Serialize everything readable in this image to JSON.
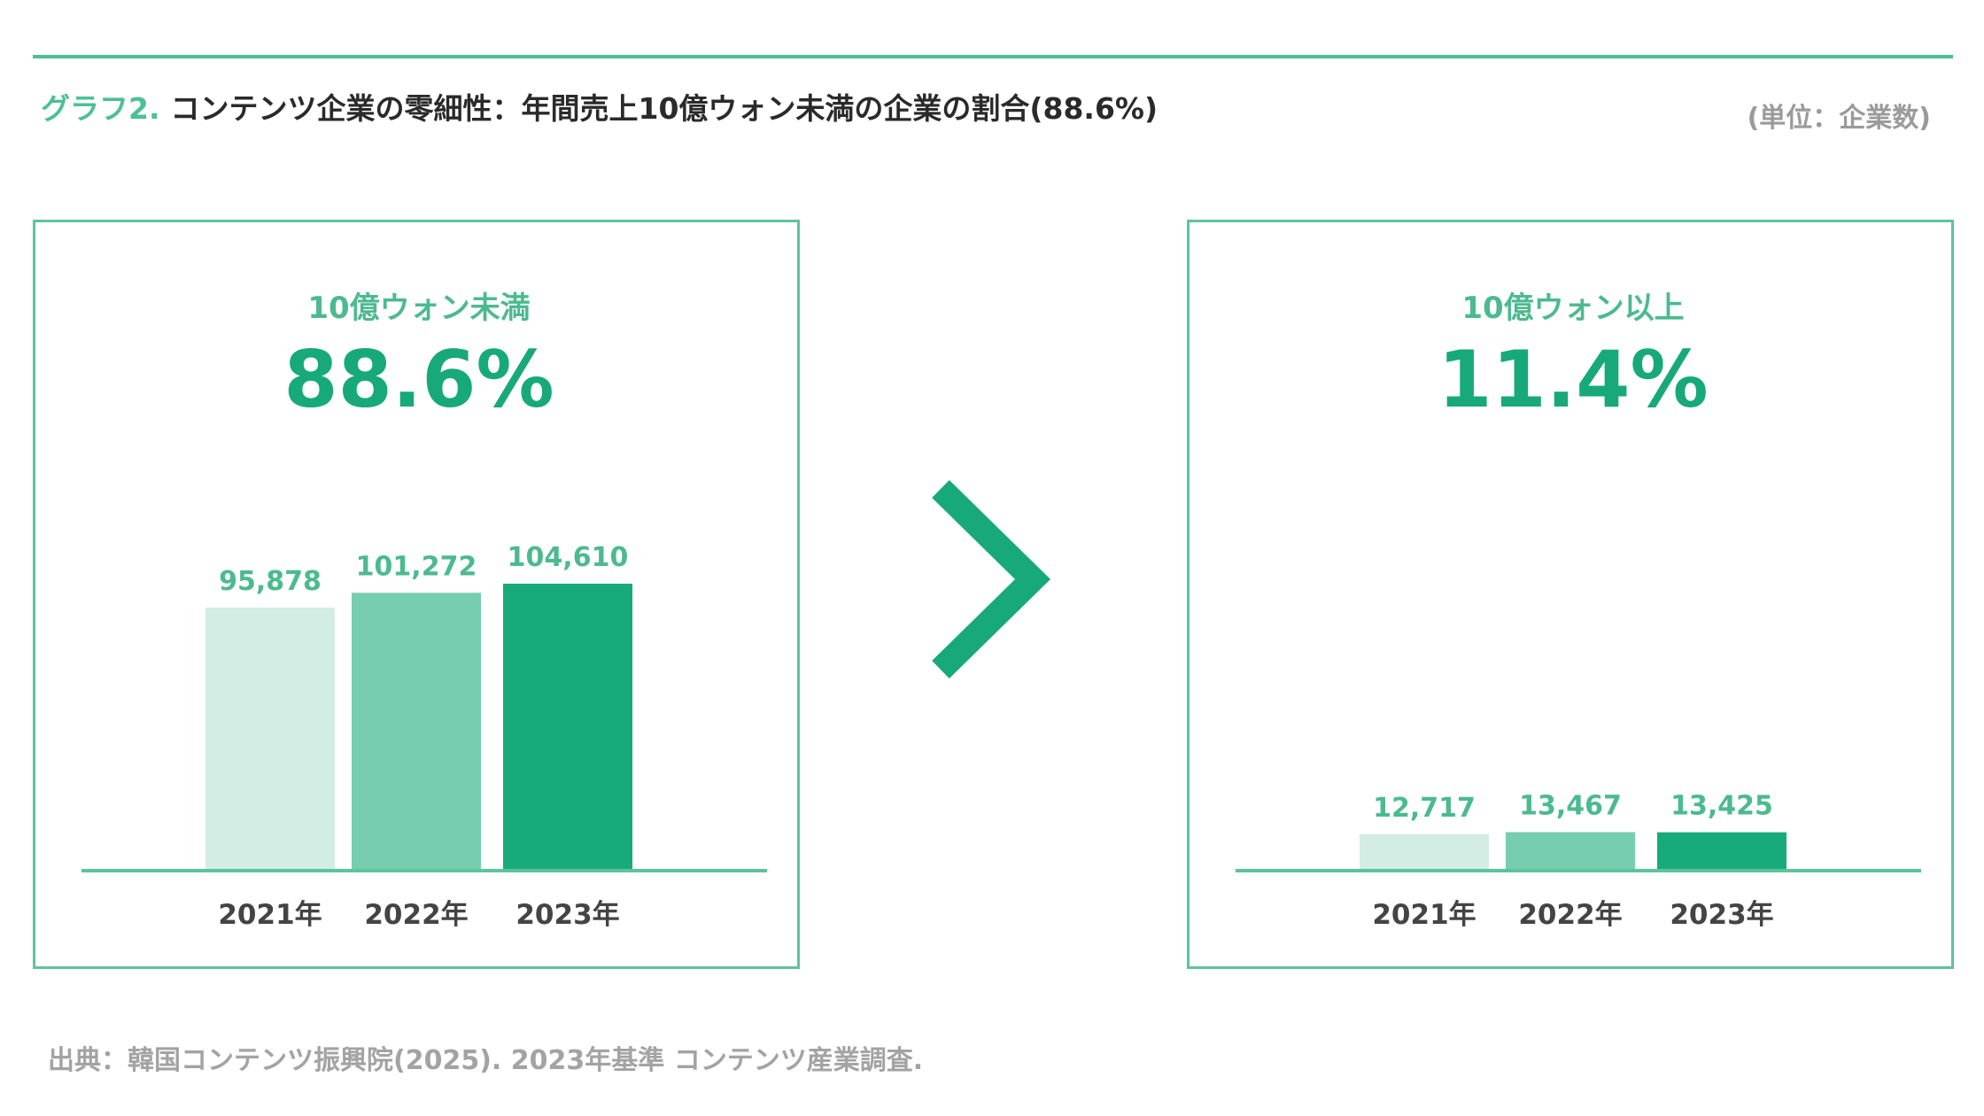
{
  "header": {
    "title_prefix": "グラフ2.",
    "title": "コンテンツ企業の零細性：年間売上10億ウォン未満の企業の割合(88.6%)",
    "unit": "(単位：企業数)"
  },
  "source": "出典：韓国コンテンツ振興院(2025). 2023年基準 コンテンツ産業調査.",
  "colors": {
    "accent": "#17a97a",
    "bar_2021": "#d3ede4",
    "bar_2022": "#76cdb0",
    "bar_2023": "#17ab7c",
    "frame": "#5cc49e",
    "label": "#4cba8f"
  },
  "chart_data": [
    {
      "type": "bar",
      "heading": "10億ウォン未満",
      "share": "88.6%",
      "categories": [
        "2021年",
        "2022年",
        "2023年"
      ],
      "values": [
        95878,
        101272,
        104610
      ],
      "value_labels": [
        "95,878",
        "101,272",
        "104,610"
      ],
      "ylim": [
        0,
        104610
      ]
    },
    {
      "type": "bar",
      "heading": "10億ウォン以上",
      "share": "11.4%",
      "categories": [
        "2021年",
        "2022年",
        "2023年"
      ],
      "values": [
        12717,
        13467,
        13425
      ],
      "value_labels": [
        "12,717",
        "13,467",
        "13,425"
      ],
      "ylim": [
        0,
        104610
      ]
    }
  ]
}
